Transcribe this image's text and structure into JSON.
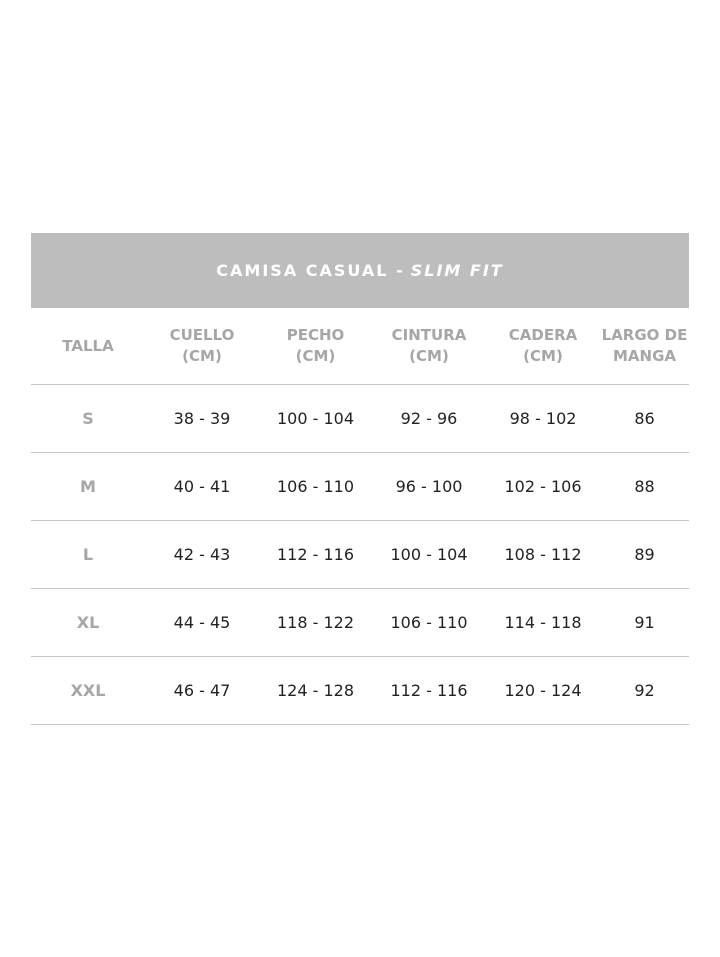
{
  "title": {
    "main": "CAMISA CASUAL -",
    "italic": "SLIM FIT"
  },
  "columns": [
    "TALLA",
    "CUELLO\n(CM)",
    "PECHO\n(CM)",
    "CINTURA\n(CM)",
    "CADERA\n(CM)",
    "LARGO DE\nMANGA"
  ],
  "rows": [
    [
      "S",
      "38 - 39",
      "100 - 104",
      "92 - 96",
      "98 - 102",
      "86"
    ],
    [
      "M",
      "40 - 41",
      "106 - 110",
      "96 - 100",
      "102 - 106",
      "88"
    ],
    [
      "L",
      "42 - 43",
      "112 - 116",
      "100 - 104",
      "108 - 112",
      "89"
    ],
    [
      "XL",
      "44 - 45",
      "118 - 122",
      "106 - 110",
      "114 - 118",
      "91"
    ],
    [
      "XXL",
      "46 - 47",
      "124 - 128",
      "112 - 116",
      "120 - 124",
      "92"
    ]
  ],
  "colors": {
    "header_band": "#bdbdbd",
    "header_text": "#a6a6a6",
    "divider": "#c8c8c8"
  }
}
